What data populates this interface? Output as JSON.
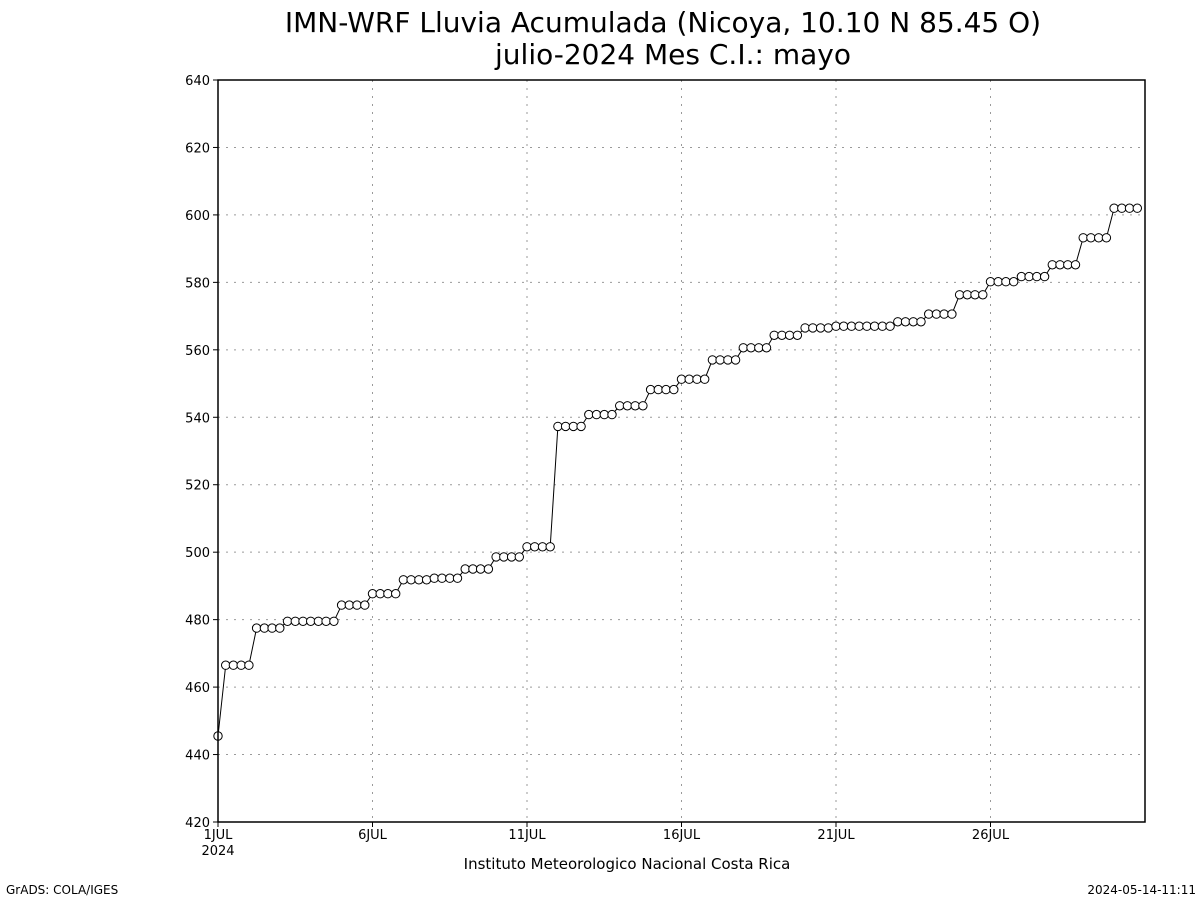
{
  "chart_data": {
    "type": "line",
    "title": "IMN-WRF  Lluvia Acumulada (Nicoya, 10.10  N 85.45  O)",
    "subtitle": "julio-2024 Mes C.I.: mayo",
    "xlabel": "Instituto Meteorologico Nacional Costa Rica",
    "ylabel": "",
    "ylim": [
      420,
      640
    ],
    "y_ticks": [
      "420",
      "440",
      "460",
      "480",
      "500",
      "520",
      "540",
      "560",
      "580",
      "600",
      "620",
      "640"
    ],
    "x_ticks": [
      {
        "day": 1,
        "label": "1JUL",
        "sublabel": "2024"
      },
      {
        "day": 6,
        "label": "6JUL",
        "sublabel": ""
      },
      {
        "day": 11,
        "label": "11JUL",
        "sublabel": ""
      },
      {
        "day": 16,
        "label": "16JUL",
        "sublabel": ""
      },
      {
        "day": 21,
        "label": "21JUL",
        "sublabel": ""
      },
      {
        "day": 26,
        "label": "26JUL",
        "sublabel": ""
      }
    ],
    "xlim_days": [
      1,
      31
    ],
    "grid": true,
    "marker": "open-circle",
    "step_days": 0.25,
    "values": [
      445.5,
      466.5,
      466.5,
      466.5,
      466.5,
      477.5,
      477.5,
      477.5,
      477.5,
      479.5,
      479.5,
      479.5,
      479.5,
      479.5,
      479.5,
      479.5,
      484.3,
      484.3,
      484.3,
      484.3,
      487.7,
      487.7,
      487.7,
      487.7,
      491.8,
      491.8,
      491.8,
      491.8,
      492.3,
      492.3,
      492.3,
      492.3,
      495.0,
      495.0,
      495.0,
      495.0,
      498.6,
      498.6,
      498.6,
      498.6,
      501.6,
      501.6,
      501.6,
      501.6,
      537.3,
      537.3,
      537.3,
      537.3,
      540.8,
      540.8,
      540.8,
      540.8,
      543.4,
      543.4,
      543.4,
      543.4,
      548.2,
      548.2,
      548.2,
      548.2,
      551.3,
      551.3,
      551.3,
      551.3,
      557.0,
      557.0,
      557.0,
      557.0,
      560.6,
      560.6,
      560.6,
      560.6,
      564.3,
      564.3,
      564.3,
      564.3,
      566.5,
      566.5,
      566.5,
      566.5,
      567.0,
      567.0,
      567.0,
      567.0,
      567.0,
      567.0,
      567.0,
      567.0,
      568.3,
      568.3,
      568.3,
      568.3,
      570.6,
      570.6,
      570.6,
      570.6,
      576.3,
      576.3,
      576.3,
      576.3,
      580.2,
      580.2,
      580.2,
      580.2,
      581.7,
      581.7,
      581.7,
      581.7,
      585.2,
      585.2,
      585.2,
      585.2,
      593.2,
      593.2,
      593.2,
      593.2,
      602.0,
      602.0,
      602.0,
      602.0
    ]
  },
  "footer": {
    "left": "GrADS: COLA/IGES",
    "right": "2024-05-14-11:11"
  },
  "colors": {
    "background": "#ffffff",
    "line": "#000000",
    "grid": "#9a9a9a",
    "marker_fill": "#ffffff"
  }
}
